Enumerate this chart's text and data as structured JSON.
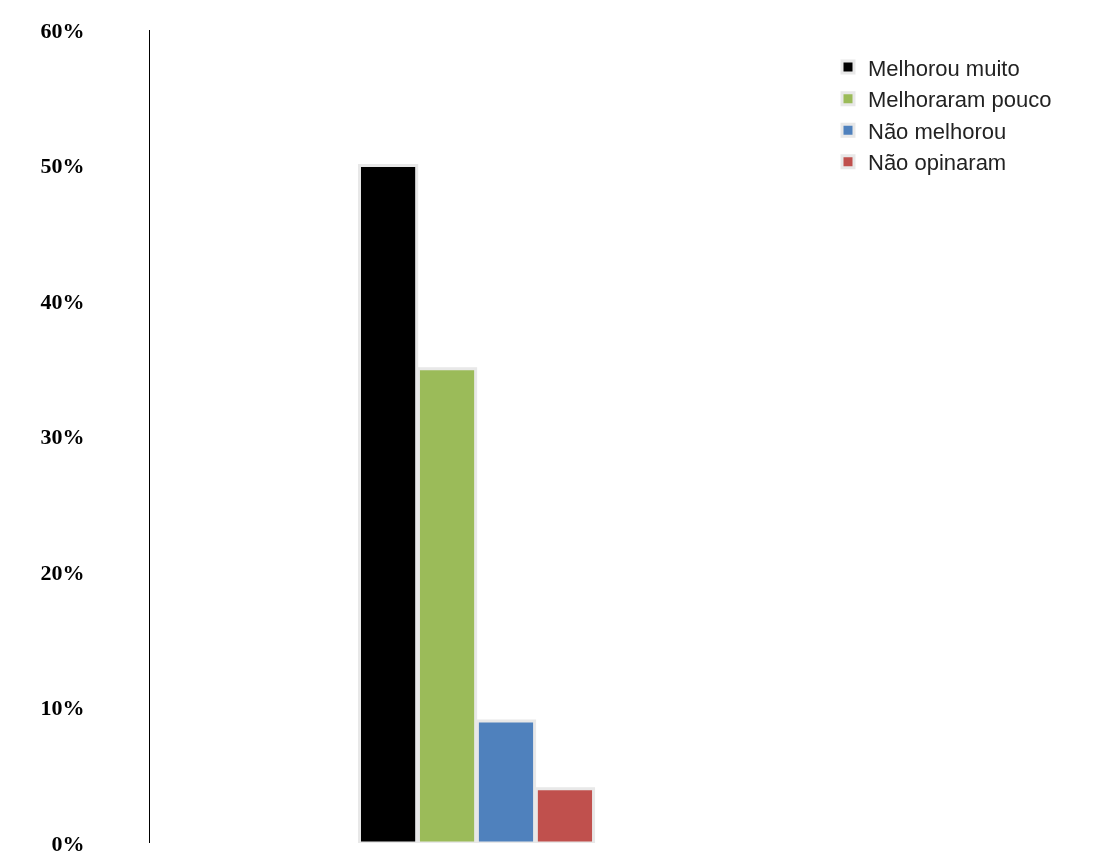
{
  "chart_data": {
    "type": "bar",
    "categories": [
      null
    ],
    "series": [
      {
        "name": "Melhorou muito",
        "color": "#000000",
        "values": [
          50
        ]
      },
      {
        "name": "Melhoraram pouco",
        "color": "#9bbb59",
        "values": [
          35
        ]
      },
      {
        "name": "Não melhorou",
        "color": "#4f81bd",
        "values": [
          9
        ]
      },
      {
        "name": "Não opinaram",
        "color": "#c0504d",
        "values": [
          4
        ]
      }
    ],
    "ylim": [
      0,
      60
    ],
    "yticks": [
      {
        "value": 0,
        "label": "0%"
      },
      {
        "value": 10,
        "label": "10%"
      },
      {
        "value": 20,
        "label": "20%"
      },
      {
        "value": 30,
        "label": "30%"
      },
      {
        "value": 40,
        "label": "40%"
      },
      {
        "value": 50,
        "label": "50%"
      },
      {
        "value": 60,
        "label": "60%"
      }
    ],
    "legend": "top right"
  }
}
